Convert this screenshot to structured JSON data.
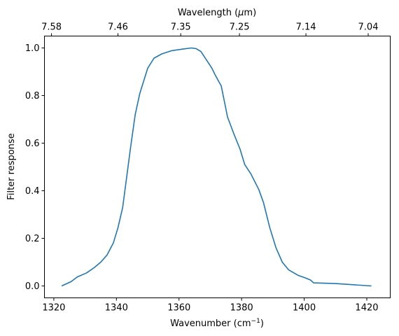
{
  "chart_data": {
    "type": "line",
    "xlabel": "Wavenumber (cm",
    "xlabel_sup": "−1",
    "xlabel_end": ")",
    "ylabel": "Filter response",
    "top_xlabel": "Wavelength (",
    "top_xlabel_mu": "μ",
    "top_xlabel_end": "m)",
    "xlim": [
      1317.0,
      1427.5
    ],
    "ylim": [
      -0.05,
      1.05
    ],
    "x_ticks": [
      1320,
      1340,
      1360,
      1380,
      1400,
      1420
    ],
    "x_tick_labels": [
      "1320",
      "1340",
      "1360",
      "1380",
      "1400",
      "1420"
    ],
    "y_ticks": [
      0.0,
      0.2,
      0.4,
      0.6,
      0.8,
      1.0
    ],
    "y_tick_labels": [
      "0.0",
      "0.2",
      "0.4",
      "0.6",
      "0.8",
      "1.0"
    ],
    "top_ticks": [
      7.58,
      7.46,
      7.35,
      7.25,
      7.14,
      7.04
    ],
    "top_tick_labels": [
      "7.58",
      "7.46",
      "7.35",
      "7.25",
      "7.14",
      "7.04"
    ],
    "line_color": "#1f77b4",
    "series": [
      {
        "x": [
          1322.5,
          1325.5,
          1327.5,
          1330.5,
          1333.0,
          1335.0,
          1337.0,
          1339.0,
          1340.5,
          1342.0,
          1343.0,
          1344.5,
          1346.0,
          1347.5,
          1350.0,
          1352.0,
          1354.5,
          1357.5,
          1361.0,
          1364.0,
          1365.5,
          1367.0,
          1368.5,
          1370.5,
          1371.5,
          1373.5,
          1375.5,
          1377.5,
          1379.5,
          1381.0,
          1383.0,
          1385.5,
          1387.0,
          1389.0,
          1391.0,
          1393.0,
          1395.0,
          1398.0,
          1400.5,
          1402.0,
          1403.0,
          1410.0,
          1421.5
        ],
        "y": [
          0.0,
          0.018,
          0.038,
          0.055,
          0.078,
          0.1,
          0.13,
          0.18,
          0.245,
          0.33,
          0.43,
          0.58,
          0.72,
          0.81,
          0.915,
          0.957,
          0.975,
          0.988,
          0.995,
          1.0,
          0.997,
          0.985,
          0.955,
          0.915,
          0.888,
          0.84,
          0.71,
          0.64,
          0.575,
          0.51,
          0.47,
          0.405,
          0.35,
          0.245,
          0.16,
          0.1,
          0.068,
          0.045,
          0.033,
          0.025,
          0.013,
          0.01,
          0.0
        ]
      }
    ]
  }
}
